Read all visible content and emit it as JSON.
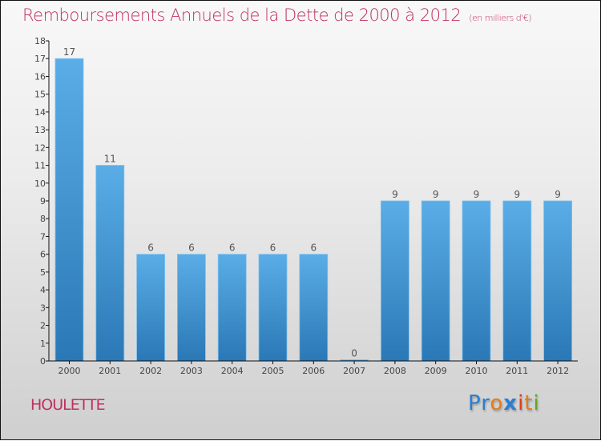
{
  "header": {
    "title": "Remboursements Annuels de la Dette de 2000 à 2012",
    "subtitle": "(en milliers d'€)"
  },
  "footer": {
    "commune": "HOULETTE",
    "logo": {
      "letters": [
        {
          "ch": "P",
          "color": "#2a7fd0"
        },
        {
          "ch": "r",
          "color": "#2a7fd0"
        },
        {
          "ch": "o",
          "color": "#e87b1c"
        },
        {
          "ch": "x",
          "color": "#2a7fd0"
        },
        {
          "ch": "i",
          "color": "#e23b1a"
        },
        {
          "ch": "t",
          "color": "#e87b1c"
        },
        {
          "ch": "i",
          "color": "#5aa82a"
        }
      ]
    }
  },
  "colors": {
    "bar_top": "#5aade6",
    "bar_bottom": "#2a78b6",
    "title": "#c0305e"
  },
  "chart_data": {
    "type": "bar",
    "title": "Remboursements Annuels de la Dette de 2000 à 2012",
    "subtitle": "(en milliers d'€)",
    "xlabel": "",
    "ylabel": "",
    "categories": [
      "2000",
      "2001",
      "2002",
      "2003",
      "2004",
      "2005",
      "2006",
      "2007",
      "2008",
      "2009",
      "2010",
      "2011",
      "2012"
    ],
    "values": [
      17,
      11,
      6,
      6,
      6,
      6,
      6,
      0,
      9,
      9,
      9,
      9,
      9
    ],
    "ylim": [
      0,
      18
    ],
    "yticks": [
      0,
      1,
      2,
      3,
      4,
      5,
      6,
      7,
      8,
      9,
      10,
      11,
      12,
      13,
      14,
      15,
      16,
      17,
      18
    ],
    "grid": false,
    "data_labels": true
  }
}
